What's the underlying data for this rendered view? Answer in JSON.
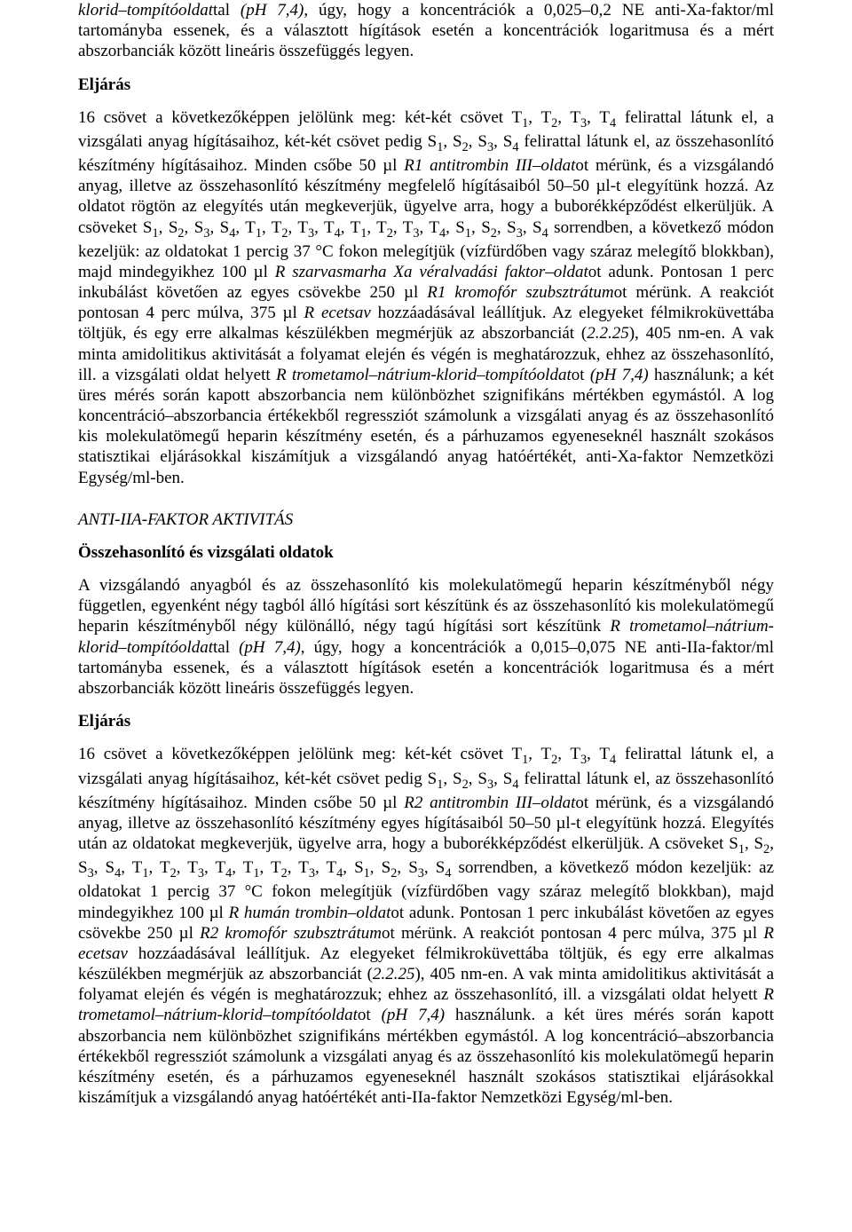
{
  "colors": {
    "text": "#000000",
    "background": "#ffffff"
  },
  "typography": {
    "font_family": "Times New Roman",
    "base_font_size_pt": 14,
    "line_height": 1.22,
    "alignment": "justify"
  },
  "paragraphs": {
    "p1": "klorid–tompítóoldattal (pH 7,4), úgy, hogy a koncentrációk a 0,025–0,2 NE anti-Xa-faktor/ml tartományba essenek, és a választott hígítások esetén a koncentrációk logaritmusa és a mért abszorbanciák között lineáris összefüggés legyen.",
    "h_eljaras1": "Eljárás",
    "p2": "16 csövet a következőképpen jelölünk meg: két-két csövet T₁, T₂, T₃, T₄ felirattal látunk el, a vizsgálati anyag hígításaihoz, két-két csövet pedig S₁, S₂, S₃, S₄ felirattal látunk el, az összehasonlító készítmény hígításaihoz. Minden csőbe 50 µl R1 antitrombin III–oldatot mérünk, és a vizsgálandó anyag, illetve az összehasonlító készítmény megfelelő hígításaiból 50–50 µl-t elegyítünk hozzá. Az oldatot rögtön az elegyítés után megkeverjük, ügyelve arra, hogy a buborékképződést elkerüljük. A csöveket S₁, S₂, S₃, S₄, T₁, T₂, T₃, T₄, T₁, T₂, T₃, T₄, S₁, S₂, S₃, S₄ sorrendben, a következő módon kezeljük: az oldatokat 1 percig 37 °C fokon melegítjük (vízfürdőben vagy száraz melegítő blokkban), majd mindegyikhez 100 µl R szarvasmarha Xa véralvadási faktor–oldatot adunk. Pontosan 1 perc inkubálást követően az egyes csövekbe 250 µl R1 kromofór szubsztrátumot mérünk. A reakciót pontosan 4 perc múlva, 375 µl R ecetsav hozzáadásával leállítjuk. Az elegyeket félmikroküvettába töltjük, és egy erre alkalmas készülékben megmérjük az abszorbanciát (2.2.25), 405 nm-en. A vak minta amidolitikus aktivitását a folyamat elején és végén is meghatározzuk, ehhez az összehasonlító, ill. a vizsgálati oldat helyett R trometamol–nátrium-klorid–tompítóoldatot (pH 7,4) használunk; a két üres mérés során kapott abszorbancia nem különbözhet szignifikáns mértékben egymástól. A log koncentráció–abszorbancia értékekből regressziót számolunk a vizsgálati anyag és az összehasonlító kis molekulatömegű heparin készítmény esetén, és a párhuzamos egyeneseknél használt szokásos statisztikai eljárásokkal kiszámítjuk a vizsgálandó anyag hatóértékét, anti-Xa-faktor Nemzetközi Egység/ml-ben.",
    "h_anti_iia": "ANTI-IIA-FAKTOR AKTIVITÁS",
    "h_osszehasonlito": "Összehasonlító és vizsgálati oldatok",
    "p3": "A vizsgálandó anyagból és az összehasonlító kis molekulatömegű heparin készítményből négy független, egyenként négy tagból álló hígítási sort készítünk és az összehasonlító kis molekulatömegű heparin készítményből négy különálló, négy tagú hígítási sort készítünk R trometamol–nátrium-klorid–tompítóoldattal (pH 7,4), úgy, hogy a koncentrációk a 0,015–0,075 NE anti-IIa-faktor/ml tartományba essenek, és a választott hígítások esetén a koncentrációk logaritmusa és a mért abszorbanciák között lineáris összefüggés legyen.",
    "h_eljaras2": "Eljárás",
    "p4": "16 csövet a következőképpen jelölünk meg: két-két csövet T₁, T₂, T₃, T₄ felirattal látunk el, a vizsgálati anyag hígításaihoz, két-két csövet pedig S₁, S₂, S₃, S₄ felirattal látunk el, az összehasonlító készítmény hígításaihoz. Minden csőbe 50 µl R2 antitrombin III–oldatot mérünk, és a vizsgálandó anyag, illetve az összehasonlító készítmény egyes hígításaiból 50–50 µl-t elegyítünk hozzá. Elegyítés után az oldatokat megkeverjük, ügyelve arra, hogy a buborékképződést elkerüljük. A csöveket S₁, S₂, S₃, S₄, T₁, T₂, T₃, T₄, T₁, T₂, T₃, T₄, S₁, S₂, S₃, S₄ sorrendben, a következő módon kezeljük: az oldatokat 1 percig 37 °C fokon melegítjük (vízfürdőben vagy száraz melegítő blokkban), majd mindegyikhez 100 µl R humán trombin–oldatot adunk. Pontosan 1 perc inkubálást követően az egyes csövekbe 250 µl R2 kromofór szubsztrátumot mérünk. A reakciót pontosan 4 perc múlva, 375 µl R ecetsav hozzáadásával leállítjuk. Az elegyeket félmikroküvettába töltjük, és egy erre alkalmas készülékben megmérjük az abszorbanciát (2.2.25), 405 nm-en. A vak minta amidolitikus aktivitását a folyamat elején és végén is meghatározzuk; ehhez az összehasonlító, ill. a vizsgálati oldat helyett R trometamol–nátrium-klorid–tompítóoldatot (pH 7,4) használunk. a két üres mérés során kapott abszorbancia nem különbözhet szignifikáns mértékben egymástól. A log koncentráció–abszorbancia értékekből regressziót számolunk a vizsgálati anyag és az összehasonlító kis molekulatömegű heparin készítmény esetén, és a párhuzamos egyeneseknél használt szokásos statisztikai eljárásokkal kiszámítjuk a vizsgálandó anyag hatóértékét anti-IIa-faktor Nemzetközi Egység/ml-ben."
  }
}
